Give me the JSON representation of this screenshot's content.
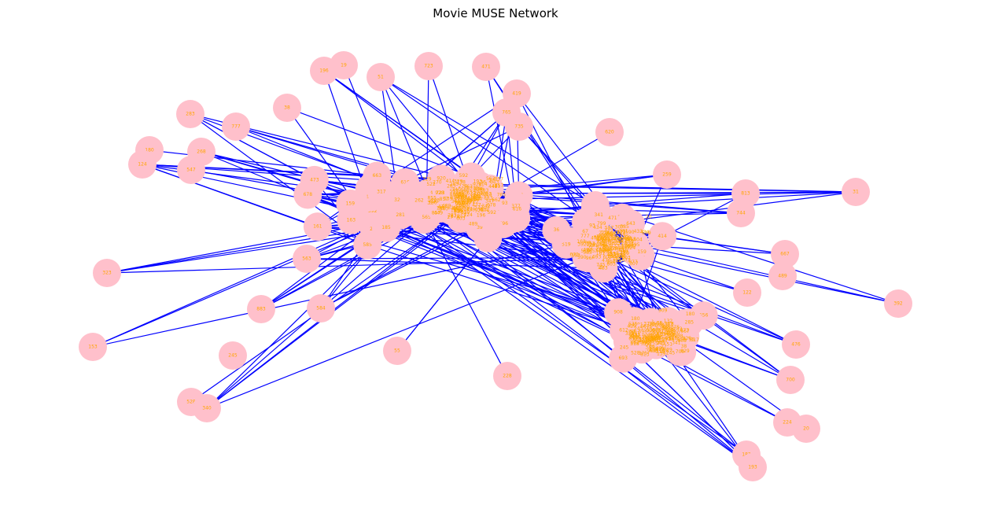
{
  "title": "Movie MUSE Network",
  "colors": {
    "edge": "#0000ff",
    "node": "#ffc0cb",
    "label": "#ffa500"
  },
  "chart_data": {
    "type": "network",
    "title": "Movie MUSE Network",
    "node_labels": [
      "196",
      "19",
      "51",
      "723",
      "471",
      "419",
      "765",
      "735",
      "38",
      "283",
      "777",
      "180",
      "268",
      "124",
      "547",
      "620",
      "259",
      "813",
      "31",
      "744",
      "667",
      "489",
      "392",
      "122",
      "323",
      "153",
      "528",
      "340",
      "476",
      "700",
      "224",
      "20",
      "183",
      "193",
      "228",
      "55",
      "883",
      "584",
      "245",
      "563",
      "597",
      "87",
      "27",
      "93",
      "50",
      "857",
      "135",
      "375",
      "71",
      "877",
      "318",
      "539",
      "656",
      "556",
      "138",
      "218",
      "76",
      "522",
      "867",
      "575",
      "481",
      "870",
      "305",
      "342",
      "161",
      "106",
      "592",
      "159",
      "119",
      "616",
      "745",
      "118",
      "270",
      "858",
      "633",
      "186",
      "392",
      "903",
      "329",
      "494",
      "617",
      "928",
      "307",
      "908",
      "663",
      "604",
      "372",
      "966",
      "585",
      "964",
      "855",
      "565",
      "909",
      "914",
      "473",
      "829",
      "449",
      "440",
      "677",
      "414",
      "21",
      "255",
      "257",
      "803",
      "859",
      "185",
      "163",
      "377",
      "662",
      "433",
      "491",
      "477",
      "590",
      "596",
      "678",
      "229",
      "88",
      "285",
      "519",
      "341",
      "888",
      "603",
      "920",
      "557",
      "799",
      "39",
      "36",
      "281",
      "139",
      "624",
      "132",
      "802",
      "857",
      "672",
      "330",
      "347",
      "772",
      "27",
      "612",
      "434",
      "245",
      "93",
      "700",
      "625",
      "317",
      "262",
      "595",
      "643",
      "693",
      "626"
    ],
    "node_count": 150,
    "edge_count": 500
  }
}
